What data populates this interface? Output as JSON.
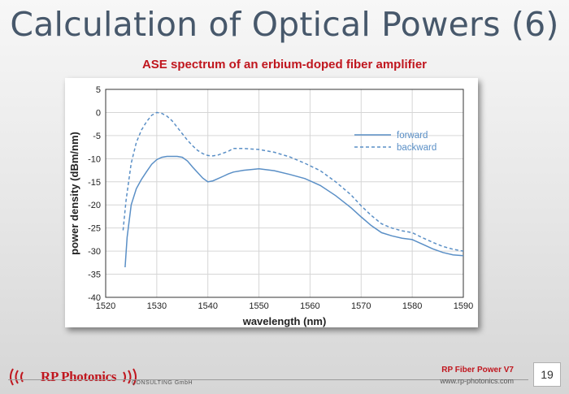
{
  "slide": {
    "title": "Calculation of Optical Powers (6)",
    "subtitle": "ASE spectrum of an erbium-doped fiber amplifier",
    "page_number": "19"
  },
  "footer": {
    "logo_text": "RP Photonics",
    "consulting_text": "CONSULTING GmbH",
    "product": "RP Fiber Power V7",
    "url": "www.rp-photonics.com"
  },
  "colors": {
    "title": "#47586b",
    "subtitle": "#c0161e",
    "series": "#5a8fc6",
    "brand_red": "#c0161e"
  },
  "chart_data": {
    "type": "line",
    "xlabel": "wavelength (nm)",
    "ylabel": "power density (dBm/nm)",
    "xlim": [
      1520,
      1590
    ],
    "ylim": [
      -40,
      5
    ],
    "xticks": [
      1520,
      1530,
      1540,
      1550,
      1560,
      1570,
      1580,
      1590
    ],
    "yticks": [
      5,
      0,
      -5,
      -10,
      -15,
      -20,
      -25,
      -30,
      -35,
      -40
    ],
    "grid": true,
    "legend_position": "top-right",
    "series": [
      {
        "name": "forward",
        "style": "solid",
        "x": [
          1523.8,
          1524.2,
          1525,
          1526,
          1527,
          1528,
          1529,
          1530,
          1531,
          1532,
          1533,
          1534,
          1535,
          1536,
          1537,
          1538,
          1539,
          1540,
          1541,
          1542,
          1543,
          1544,
          1545,
          1547,
          1550,
          1553,
          1556,
          1559,
          1562,
          1565,
          1568,
          1570,
          1572,
          1574,
          1576,
          1578,
          1580,
          1582,
          1584,
          1586,
          1588,
          1590
        ],
        "y": [
          -33.5,
          -27,
          -20,
          -16.5,
          -14.5,
          -12.8,
          -11.2,
          -10.2,
          -9.7,
          -9.5,
          -9.5,
          -9.5,
          -9.7,
          -10.5,
          -11.8,
          -13,
          -14.2,
          -15,
          -14.8,
          -14.3,
          -13.8,
          -13.3,
          -12.9,
          -12.5,
          -12.2,
          -12.6,
          -13.4,
          -14.3,
          -15.8,
          -18,
          -20.6,
          -22.6,
          -24.5,
          -26,
          -26.7,
          -27.2,
          -27.5,
          -28.5,
          -29.5,
          -30.3,
          -30.8,
          -31
        ]
      },
      {
        "name": "backward",
        "style": "dashed",
        "x": [
          1523.4,
          1524,
          1525,
          1526,
          1527,
          1528,
          1529,
          1530,
          1531,
          1532,
          1533,
          1534,
          1535,
          1536,
          1537,
          1538,
          1539,
          1540,
          1541,
          1542,
          1543,
          1544,
          1545,
          1547,
          1550,
          1553,
          1556,
          1559,
          1562,
          1565,
          1568,
          1570,
          1572,
          1574,
          1576,
          1578,
          1580,
          1582,
          1584,
          1586,
          1588,
          1590
        ],
        "y": [
          -25.5,
          -19,
          -11,
          -6.5,
          -3.8,
          -2,
          -0.6,
          0,
          -0.2,
          -0.8,
          -1.8,
          -3.2,
          -4.6,
          -6,
          -7.2,
          -8.2,
          -8.9,
          -9.3,
          -9.4,
          -9.2,
          -8.8,
          -8.4,
          -7.8,
          -7.8,
          -8,
          -8.6,
          -9.6,
          -11,
          -12.6,
          -15,
          -17.8,
          -20.2,
          -22.3,
          -24.1,
          -25,
          -25.6,
          -26,
          -27.1,
          -28.1,
          -29,
          -29.6,
          -30
        ]
      }
    ]
  }
}
